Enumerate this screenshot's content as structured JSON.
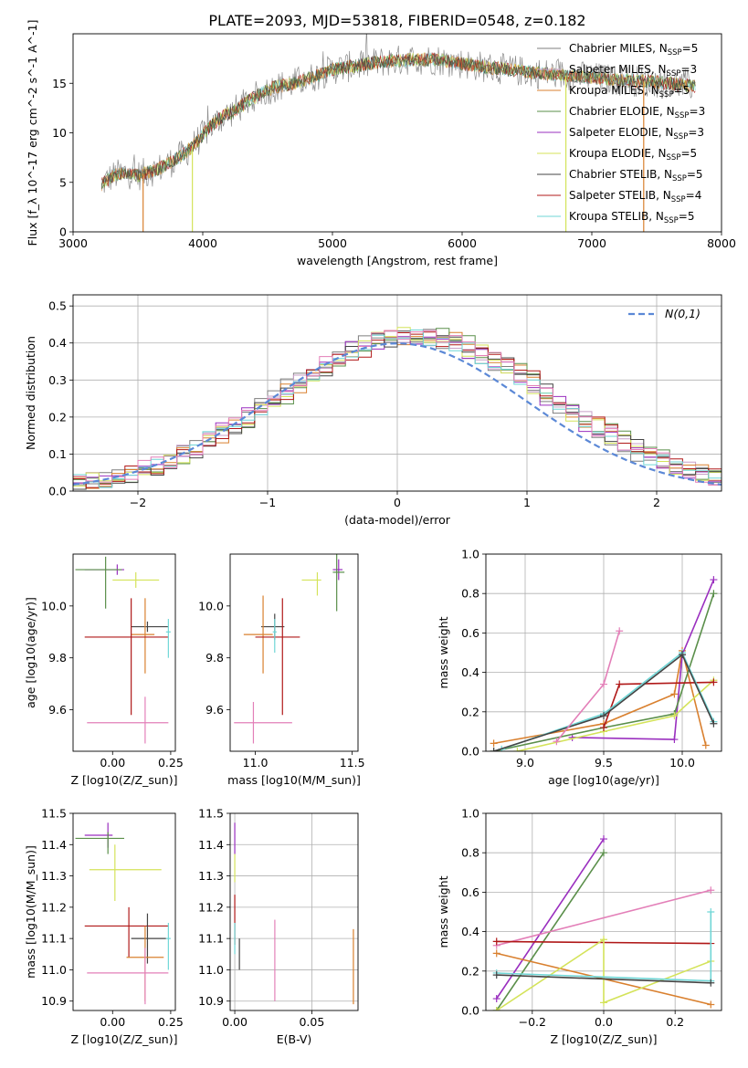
{
  "title": "PLATE=2093, MJD=53818, FIBERID=0548, z=0.182",
  "colors": {
    "chabrier_miles": "#7f7f7f",
    "salpeter_miles": "#c8a0c8",
    "kroupa_miles": "#d9802f",
    "chabrier_elodie": "#5a8f4a",
    "salpeter_elodie": "#9a2fbf",
    "kroupa_elodie": "#d4e35a",
    "chabrier_stelib": "#444444",
    "salpeter_stelib": "#b01818",
    "kroupa_stelib": "#6fd6d6",
    "extra_pink": "#e37fb8",
    "normal_curve": "#5b88d6"
  },
  "legend_series": [
    {
      "label": "Chabrier MILES, N",
      "sub": "SSP",
      "eq": "=5",
      "color_key": "chabrier_miles"
    },
    {
      "label": "Salpeter MILES, N",
      "sub": "SSP",
      "eq": "=3",
      "color_key": "salpeter_miles"
    },
    {
      "label": "Kroupa MILES, N",
      "sub": "SSP",
      "eq": "=5",
      "color_key": "kroupa_miles"
    },
    {
      "label": "Chabrier ELODIE, N",
      "sub": "SSP",
      "eq": "=3",
      "color_key": "chabrier_elodie"
    },
    {
      "label": "Salpeter ELODIE, N",
      "sub": "SSP",
      "eq": "=3",
      "color_key": "salpeter_elodie"
    },
    {
      "label": "Kroupa ELODIE, N",
      "sub": "SSP",
      "eq": "=5",
      "color_key": "kroupa_elodie"
    },
    {
      "label": "Chabrier STELIB, N",
      "sub": "SSP",
      "eq": "=5",
      "color_key": "chabrier_stelib"
    },
    {
      "label": "Salpeter STELIB, N",
      "sub": "SSP",
      "eq": "=4",
      "color_key": "salpeter_stelib"
    },
    {
      "label": "Kroupa STELIB, N",
      "sub": "SSP",
      "eq": "=5",
      "color_key": "kroupa_stelib"
    }
  ],
  "chart_data": [
    {
      "id": "spectrum",
      "type": "line",
      "xlabel": "wavelength [Angstrom, rest frame]",
      "ylabel": "Flux [f_λ 10^-17 erg cm^-2 s^-1 A^-1]",
      "xlim": [
        3000,
        8000
      ],
      "ylim": [
        0,
        20
      ],
      "xticks": [
        3000,
        4000,
        5000,
        6000,
        7000,
        8000
      ],
      "yticks": [
        0,
        5,
        10,
        15
      ],
      "legend_loc": "upper right",
      "grid": false,
      "continuum": {
        "x": [
          3220,
          3300,
          3400,
          3500,
          3550,
          3650,
          3750,
          3850,
          3950,
          4050,
          4150,
          4250,
          4350,
          4450,
          4550,
          4700,
          4850,
          5000,
          5200,
          5400,
          5600,
          5800,
          6000,
          6200,
          6400,
          6600,
          6800,
          7000,
          7200,
          7400,
          7600,
          7800
        ],
        "y": [
          4.8,
          5.6,
          6.0,
          5.7,
          5.9,
          6.3,
          7.0,
          7.8,
          9.0,
          10.5,
          11.6,
          12.3,
          13.2,
          14.0,
          14.6,
          15.0,
          15.6,
          16.4,
          16.8,
          17.2,
          17.4,
          17.4,
          17.0,
          16.6,
          16.3,
          16.0,
          15.8,
          15.6,
          15.3,
          15.2,
          15.0,
          14.7
        ]
      },
      "drop_lines": [
        {
          "x": 3540,
          "color_key": "kroupa_miles"
        },
        {
          "x": 3920,
          "color_key": "kroupa_elodie"
        },
        {
          "x": 6800,
          "color_key": "kroupa_elodie"
        },
        {
          "x": 7400,
          "color_key": "kroupa_miles"
        }
      ]
    },
    {
      "id": "residuals",
      "type": "histogram",
      "xlabel": "(data-model)/error",
      "ylabel": "Normed distribution",
      "xlim": [
        -2.5,
        2.5
      ],
      "ylim": [
        0,
        0.53
      ],
      "xticks": [
        -2,
        -1,
        0,
        1,
        2
      ],
      "yticks": [
        0.0,
        0.1,
        0.2,
        0.3,
        0.4,
        0.5
      ],
      "grid": true,
      "bin_width": 0.1,
      "reference_curve": {
        "label": "N(0,1)",
        "mean": 0,
        "sigma": 1
      },
      "legend_loc": "upper right"
    },
    {
      "id": "age_vs_Z",
      "type": "errorbar",
      "xlabel": "Z [log10(Z/Z_sun)]",
      "ylabel": "age [log10(age/yr)]",
      "xlim": [
        -0.17,
        0.27
      ],
      "ylim": [
        9.44,
        10.2
      ],
      "xticks": [
        0.0,
        0.25
      ],
      "yticks": [
        9.6,
        9.8,
        10.0
      ],
      "points": [
        {
          "x": 0.02,
          "y": 10.14,
          "xerr": [
            0.14,
            0.03
          ],
          "yerr": [
            0.02,
            0.02
          ],
          "color_key": "salpeter_elodie"
        },
        {
          "x": -0.03,
          "y": 10.14,
          "xerr": [
            0.13,
            0.07
          ],
          "yerr": [
            0.15,
            0.05
          ],
          "color_key": "chabrier_elodie"
        },
        {
          "x": 0.1,
          "y": 10.1,
          "xerr": [
            0.1,
            0.1
          ],
          "yerr": [
            0.03,
            0.03
          ],
          "color_key": "kroupa_elodie"
        },
        {
          "x": 0.15,
          "y": 9.92,
          "xerr": [
            0.07,
            0.09
          ],
          "yerr": [
            0.02,
            0.02
          ],
          "color_key": "chabrier_stelib"
        },
        {
          "x": 0.14,
          "y": 9.89,
          "xerr": [
            0.06,
            0.04
          ],
          "yerr": [
            0.15,
            0.14
          ],
          "color_key": "kroupa_miles"
        },
        {
          "x": 0.08,
          "y": 9.88,
          "xerr": [
            0.2,
            0.16
          ],
          "yerr": [
            0.3,
            0.15
          ],
          "color_key": "salpeter_stelib"
        },
        {
          "x": 0.24,
          "y": 9.9,
          "xerr": [
            0.01,
            0.01
          ],
          "yerr": [
            0.1,
            0.05
          ],
          "color_key": "kroupa_stelib"
        },
        {
          "x": 0.14,
          "y": 9.55,
          "xerr": [
            0.25,
            0.1
          ],
          "yerr": [
            0.08,
            0.1
          ],
          "color_key": "extra_pink"
        }
      ]
    },
    {
      "id": "age_vs_mass",
      "type": "errorbar",
      "xlabel": "mass [log10(M/M_sun)]",
      "ylabel": "",
      "xlim": [
        10.87,
        11.53
      ],
      "ylim": [
        9.44,
        10.2
      ],
      "xticks": [
        11.0,
        11.5
      ],
      "yticks": [
        9.6,
        9.8,
        10.0
      ],
      "points": [
        {
          "x": 11.43,
          "y": 10.14,
          "xerr": [
            0.03,
            0.02
          ],
          "yerr": [
            0.04,
            0.04
          ],
          "color_key": "salpeter_elodie"
        },
        {
          "x": 11.42,
          "y": 10.13,
          "xerr": [
            0.02,
            0.04
          ],
          "yerr": [
            0.15,
            0.07
          ],
          "color_key": "chabrier_elodie"
        },
        {
          "x": 11.32,
          "y": 10.1,
          "xerr": [
            0.08,
            0.02
          ],
          "yerr": [
            0.06,
            0.03
          ],
          "color_key": "kroupa_elodie"
        },
        {
          "x": 11.1,
          "y": 9.92,
          "xerr": [
            0.07,
            0.05
          ],
          "yerr": [
            0.05,
            0.05
          ],
          "color_key": "chabrier_stelib"
        },
        {
          "x": 11.04,
          "y": 9.89,
          "xerr": [
            0.1,
            0.05
          ],
          "yerr": [
            0.15,
            0.15
          ],
          "color_key": "kroupa_miles"
        },
        {
          "x": 11.14,
          "y": 9.88,
          "xerr": [
            0.14,
            0.09
          ],
          "yerr": [
            0.3,
            0.15
          ],
          "color_key": "salpeter_stelib"
        },
        {
          "x": 11.1,
          "y": 9.9,
          "xerr": [
            0.01,
            0.01
          ],
          "yerr": [
            0.08,
            0.05
          ],
          "color_key": "kroupa_stelib"
        },
        {
          "x": 10.99,
          "y": 9.55,
          "xerr": [
            0.1,
            0.2
          ],
          "yerr": [
            0.08,
            0.08
          ],
          "color_key": "extra_pink"
        }
      ]
    },
    {
      "id": "massweight_vs_age",
      "type": "line",
      "xlabel": "age [log10(age/yr)]",
      "ylabel": "mass weight",
      "xlim": [
        8.75,
        10.25
      ],
      "ylim": [
        0,
        1
      ],
      "xticks": [
        9.0,
        9.5,
        10.0
      ],
      "yticks": [
        0.0,
        0.2,
        0.4,
        0.6,
        0.8,
        1.0
      ],
      "grid": true,
      "series": [
        {
          "color_key": "kroupa_miles",
          "x": [
            8.8,
            9.5,
            9.95,
            10.0,
            10.15
          ],
          "y": [
            0.04,
            0.14,
            0.29,
            0.51,
            0.03
          ]
        },
        {
          "color_key": "salpeter_elodie",
          "x": [
            9.3,
            9.95,
            10.0,
            10.2
          ],
          "y": [
            0.07,
            0.06,
            0.49,
            0.87
          ]
        },
        {
          "color_key": "chabrier_elodie",
          "x": [
            8.8,
            9.5,
            9.95,
            10.2
          ],
          "y": [
            0.0,
            0.12,
            0.19,
            0.8
          ]
        },
        {
          "color_key": "kroupa_elodie",
          "x": [
            8.95,
            9.5,
            9.95,
            10.2
          ],
          "y": [
            0.0,
            0.1,
            0.18,
            0.36
          ]
        },
        {
          "color_key": "salpeter_stelib",
          "x": [
            9.5,
            9.6,
            10.2
          ],
          "y": [
            0.12,
            0.34,
            0.35
          ]
        },
        {
          "color_key": "kroupa_stelib",
          "x": [
            8.85,
            9.5,
            10.0,
            10.2
          ],
          "y": [
            0.01,
            0.19,
            0.5,
            0.15
          ]
        },
        {
          "color_key": "chabrier_stelib",
          "x": [
            8.8,
            9.5,
            10.0,
            10.2
          ],
          "y": [
            0.0,
            0.18,
            0.49,
            0.14
          ]
        },
        {
          "color_key": "extra_pink",
          "x": [
            9.2,
            9.5,
            9.6
          ],
          "y": [
            0.05,
            0.34,
            0.61
          ]
        }
      ]
    },
    {
      "id": "mass_vs_Z",
      "type": "errorbar",
      "xlabel": "Z [log10(Z/Z_sun)]",
      "ylabel": "mass [log10(M/M_sun)]",
      "xlim": [
        -0.17,
        0.27
      ],
      "ylim": [
        10.87,
        11.5
      ],
      "xticks": [
        0.0,
        0.25
      ],
      "yticks": [
        10.9,
        11.0,
        11.1,
        11.2,
        11.3,
        11.4,
        11.5
      ],
      "points": [
        {
          "x": -0.02,
          "y": 11.43,
          "xerr": [
            0.1,
            0.02
          ],
          "yerr": [
            0.04,
            0.04
          ],
          "color_key": "salpeter_elodie"
        },
        {
          "x": -0.02,
          "y": 11.42,
          "xerr": [
            0.14,
            0.07
          ],
          "yerr": [
            0.05,
            0.02
          ],
          "color_key": "chabrier_elodie"
        },
        {
          "x": 0.01,
          "y": 11.32,
          "xerr": [
            0.11,
            0.2
          ],
          "yerr": [
            0.1,
            0.08
          ],
          "color_key": "kroupa_elodie"
        },
        {
          "x": 0.07,
          "y": 11.14,
          "xerr": [
            0.19,
            0.17
          ],
          "yerr": [
            0.1,
            0.06
          ],
          "color_key": "salpeter_stelib"
        },
        {
          "x": 0.15,
          "y": 11.1,
          "xerr": [
            0.07,
            0.08
          ],
          "yerr": [
            0.08,
            0.08
          ],
          "color_key": "chabrier_stelib"
        },
        {
          "x": 0.14,
          "y": 11.04,
          "xerr": [
            0.08,
            0.08
          ],
          "yerr": [
            0.14,
            0.1
          ],
          "color_key": "kroupa_miles"
        },
        {
          "x": 0.24,
          "y": 11.1,
          "xerr": [
            0.01,
            0.01
          ],
          "yerr": [
            0.1,
            0.05
          ],
          "color_key": "kroupa_stelib"
        },
        {
          "x": 0.14,
          "y": 10.99,
          "xerr": [
            0.25,
            0.1
          ],
          "yerr": [
            0.1,
            0.08
          ],
          "color_key": "extra_pink"
        }
      ]
    },
    {
      "id": "mass_vs_ebv",
      "type": "errorbar",
      "xlabel": "E(B-V)",
      "ylabel": "",
      "xlim": [
        -0.003,
        0.08
      ],
      "ylim": [
        10.87,
        11.5
      ],
      "xticks": [
        0.0,
        0.05
      ],
      "yticks": [
        10.9,
        11.0,
        11.1,
        11.2,
        11.3,
        11.4,
        11.5
      ],
      "grid": true,
      "points": [
        {
          "x": 0.0,
          "y": 11.42,
          "xerr": [
            0,
            0
          ],
          "yerr": [
            0.05,
            0.05
          ],
          "color_key": "salpeter_elodie"
        },
        {
          "x": 0.0,
          "y": 11.32,
          "xerr": [
            0,
            0
          ],
          "yerr": [
            0.04,
            0.05
          ],
          "color_key": "kroupa_elodie"
        },
        {
          "x": 0.0,
          "y": 11.14,
          "xerr": [
            0,
            0
          ],
          "yerr": [
            0.06,
            0.1
          ],
          "color_key": "salpeter_stelib"
        },
        {
          "x": 0.003,
          "y": 11.05,
          "xerr": [
            0,
            0
          ],
          "yerr": [
            0.05,
            0.05
          ],
          "color_key": "chabrier_stelib"
        },
        {
          "x": 0.0,
          "y": 11.1,
          "xerr": [
            0,
            0
          ],
          "yerr": [
            0.05,
            0.05
          ],
          "color_key": "kroupa_stelib"
        },
        {
          "x": 0.026,
          "y": 11.03,
          "xerr": [
            0,
            0
          ],
          "yerr": [
            0.13,
            0.13
          ],
          "color_key": "extra_pink"
        },
        {
          "x": 0.077,
          "y": 11.0,
          "xerr": [
            0,
            0
          ],
          "yerr": [
            0.11,
            0.13
          ],
          "color_key": "kroupa_miles"
        }
      ]
    },
    {
      "id": "massweight_vs_Z",
      "type": "line",
      "xlabel": "Z [log10(Z/Z_sun)]",
      "ylabel": "mass weight",
      "xlim": [
        -0.33,
        0.33
      ],
      "ylim": [
        0,
        1
      ],
      "xticks": [
        -0.2,
        0.0,
        0.2
      ],
      "yticks": [
        0.0,
        0.2,
        0.4,
        0.6,
        0.8,
        1.0
      ],
      "grid": true,
      "series": [
        {
          "color_key": "salpeter_elodie",
          "x": [
            -0.3,
            0.0
          ],
          "y": [
            0.06,
            0.87
          ]
        },
        {
          "color_key": "chabrier_elodie",
          "x": [
            -0.3,
            0.0
          ],
          "y": [
            0.0,
            0.8
          ]
        },
        {
          "color_key": "extra_pink",
          "x": [
            -0.3,
            0.3
          ],
          "y": [
            0.33,
            0.61
          ]
        },
        {
          "color_key": "salpeter_stelib",
          "x": [
            -0.3,
            0.3
          ],
          "y": [
            0.35,
            0.34
          ]
        },
        {
          "color_key": "kroupa_miles",
          "x": [
            -0.3,
            0.3
          ],
          "y": [
            0.29,
            0.03
          ]
        },
        {
          "color_key": "kroupa_elodie",
          "x": [
            -0.3,
            0.0,
            0.0,
            0.3
          ],
          "y": [
            0.0,
            0.36,
            0.04,
            0.25
          ]
        },
        {
          "color_key": "kroupa_stelib",
          "x": [
            -0.3,
            0.3,
            0.3
          ],
          "y": [
            0.19,
            0.15,
            0.5
          ]
        },
        {
          "color_key": "chabrier_stelib",
          "x": [
            -0.3,
            0.3
          ],
          "y": [
            0.18,
            0.14
          ]
        }
      ]
    }
  ]
}
